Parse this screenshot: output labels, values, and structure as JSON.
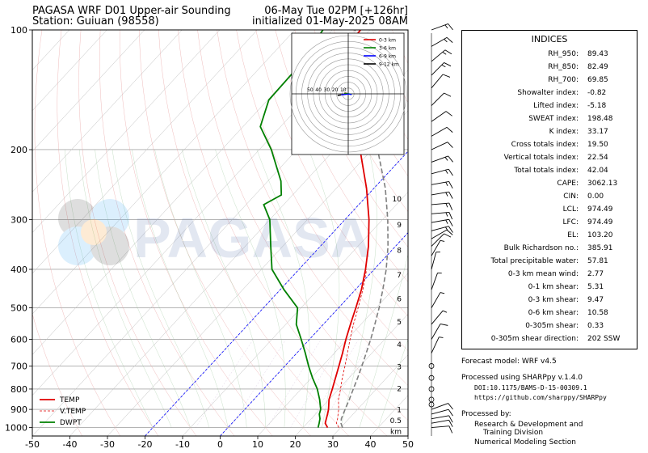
{
  "header": {
    "title_left_1": "PAGASA WRF D01 Upper-air Sounding",
    "title_left_2": "Station: Guiuan (98558)",
    "title_right_1": "06-May Tue 02PM [+126hr]",
    "title_right_2": "initialized 01-May-2025 08AM"
  },
  "watermark": "PAGASA",
  "colors": {
    "temp": "#e00000",
    "dwpt": "#008000",
    "vtemp": "#e00000",
    "parcel": "#808080",
    "hodo_03": "#e00000",
    "hodo_36": "#008000",
    "hodo_69": "#0000ff",
    "hodo_912": "#000000"
  },
  "chart_data": {
    "type": "line",
    "subtype": "skew-t log-p sounding",
    "x_ticks": [
      "-50",
      "-40",
      "-30",
      "-20",
      "-10",
      "0",
      "10",
      "20",
      "30",
      "40",
      "50"
    ],
    "y_ticks": [
      "100",
      "200",
      "300",
      "400",
      "500",
      "600",
      "700",
      "800",
      "900",
      "1000"
    ],
    "xlim": [
      -50,
      50
    ],
    "ylim": [
      1050,
      100
    ],
    "y_scale": "log",
    "km_labels": [
      "km",
      "0.5",
      "1",
      "2",
      "3",
      "4",
      "5",
      "6",
      "7",
      "8",
      "9",
      "10"
    ],
    "legend": [
      "TEMP",
      "V.TEMP",
      "DWPT"
    ],
    "legend_position": "lower-left",
    "series": [
      {
        "name": "TEMP",
        "points": [
          [
            1000,
            26.5
          ],
          [
            975,
            24.8
          ],
          [
            950,
            24.0
          ],
          [
            925,
            23.2
          ],
          [
            900,
            22.3
          ],
          [
            850,
            20.0
          ],
          [
            800,
            18.3
          ],
          [
            750,
            16.4
          ],
          [
            700,
            14.4
          ],
          [
            650,
            12.2
          ],
          [
            600,
            9.7
          ],
          [
            550,
            7.2
          ],
          [
            500,
            4.6
          ],
          [
            450,
            1.6
          ],
          [
            400,
            -2.3
          ],
          [
            350,
            -7.2
          ],
          [
            300,
            -13.6
          ],
          [
            250,
            -22.0
          ],
          [
            200,
            -33.2
          ],
          [
            175,
            -40.0
          ],
          [
            150,
            -48.5
          ],
          [
            125,
            -57.0
          ],
          [
            110,
            -62.0
          ],
          [
            100,
            -62.5
          ]
        ]
      },
      {
        "name": "V.TEMP",
        "points": [
          [
            1000,
            29.5
          ],
          [
            975,
            27.8
          ],
          [
            950,
            27.0
          ],
          [
            925,
            26.0
          ],
          [
            900,
            25.0
          ],
          [
            850,
            22.5
          ],
          [
            800,
            20.5
          ],
          [
            750,
            18.2
          ],
          [
            700,
            16.0
          ],
          [
            650,
            13.5
          ],
          [
            600,
            10.8
          ],
          [
            550,
            8.0
          ],
          [
            500,
            5.2
          ],
          [
            450,
            2.0
          ],
          [
            400,
            -2.0
          ]
        ]
      },
      {
        "name": "DWPT",
        "points": [
          [
            1000,
            24.0
          ],
          [
            975,
            23.2
          ],
          [
            950,
            22.3
          ],
          [
            925,
            21.0
          ],
          [
            900,
            20.2
          ],
          [
            850,
            17.5
          ],
          [
            800,
            14.3
          ],
          [
            750,
            10.3
          ],
          [
            700,
            6.3
          ],
          [
            650,
            2.3
          ],
          [
            600,
            -2.2
          ],
          [
            550,
            -7.2
          ],
          [
            500,
            -10.9
          ],
          [
            450,
            -19.0
          ],
          [
            400,
            -27.2
          ],
          [
            350,
            -33.2
          ],
          [
            300,
            -40.0
          ],
          [
            275,
            -45.3
          ],
          [
            260,
            -43.0
          ],
          [
            240,
            -46.5
          ],
          [
            200,
            -56.8
          ],
          [
            175,
            -65.4
          ],
          [
            150,
            -69.7
          ],
          [
            125,
            -70.0
          ],
          [
            110,
            -71.5
          ],
          [
            100,
            -72.5
          ]
        ]
      },
      {
        "name": "parcel",
        "points": [
          [
            1000,
            30.5
          ],
          [
            975,
            29.0
          ],
          [
            950,
            28.0
          ],
          [
            900,
            26.7
          ],
          [
            850,
            25.4
          ],
          [
            800,
            23.9
          ],
          [
            750,
            22.3
          ],
          [
            700,
            20.5
          ],
          [
            650,
            18.5
          ],
          [
            600,
            16.3
          ],
          [
            550,
            13.7
          ],
          [
            500,
            10.8
          ],
          [
            450,
            7.3
          ],
          [
            400,
            3.2
          ],
          [
            350,
            -2.0
          ],
          [
            300,
            -8.6
          ],
          [
            250,
            -17.0
          ],
          [
            200,
            -28.5
          ],
          [
            175,
            -36.0
          ],
          [
            150,
            -45.0
          ],
          [
            125,
            -54.0
          ],
          [
            110,
            -60.0
          ],
          [
            100,
            -64.0
          ]
        ]
      }
    ],
    "hodograph": {
      "ring_labels": [
        "50",
        "40",
        "30",
        "20",
        "10"
      ],
      "legend": [
        "0-3 km",
        "3-6 km",
        "6-9 km",
        "9-12 km"
      ],
      "segments": [
        {
          "name": "0-3 km",
          "color": "#e00000",
          "uv": [
            [
              0,
              0
            ],
            [
              -1.5,
              0.4
            ],
            [
              -3.2,
              0.9
            ],
            [
              -4.5,
              0.6
            ]
          ]
        },
        {
          "name": "3-6 km",
          "color": "#008000",
          "uv": [
            [
              -4.5,
              0.6
            ],
            [
              -2.0,
              0.5
            ],
            [
              0.5,
              0.2
            ],
            [
              3.8,
              -0.8
            ]
          ]
        },
        {
          "name": "6-9 km",
          "color": "#0000ff",
          "uv": [
            [
              3.8,
              -0.8
            ],
            [
              0.5,
              -0.2
            ],
            [
              -3.0,
              -0.6
            ],
            [
              -8.0,
              -1.2
            ]
          ]
        },
        {
          "name": "9-12 km",
          "color": "#000000",
          "uv": [
            [
              -8.0,
              -1.2
            ],
            [
              -12.0,
              -1.8
            ]
          ]
        }
      ]
    }
  },
  "wind_barbs": [
    {
      "p": 100,
      "dir": 70,
      "spd": 15
    },
    {
      "p": 110,
      "dir": 60,
      "spd": 15
    },
    {
      "p": 120,
      "dir": 50,
      "spd": 15
    },
    {
      "p": 130,
      "dir": 45,
      "spd": 15
    },
    {
      "p": 140,
      "dir": 40,
      "spd": 10
    },
    {
      "p": 155,
      "dir": 45,
      "spd": 10
    },
    {
      "p": 170,
      "dir": 55,
      "spd": 10
    },
    {
      "p": 185,
      "dir": 60,
      "spd": 10
    },
    {
      "p": 200,
      "dir": 65,
      "spd": 10
    },
    {
      "p": 215,
      "dir": 70,
      "spd": 15
    },
    {
      "p": 230,
      "dir": 75,
      "spd": 15
    },
    {
      "p": 245,
      "dir": 80,
      "spd": 15
    },
    {
      "p": 260,
      "dir": 80,
      "spd": 15
    },
    {
      "p": 275,
      "dir": 85,
      "spd": 15
    },
    {
      "p": 290,
      "dir": 85,
      "spd": 15
    },
    {
      "p": 305,
      "dir": 80,
      "spd": 15
    },
    {
      "p": 320,
      "dir": 75,
      "spd": 15
    },
    {
      "p": 335,
      "dir": 60,
      "spd": 10
    },
    {
      "p": 350,
      "dir": 45,
      "spd": 10
    },
    {
      "p": 370,
      "dir": 30,
      "spd": 5
    },
    {
      "p": 400,
      "dir": 15,
      "spd": 5
    },
    {
      "p": 450,
      "dir": 20,
      "spd": 5
    },
    {
      "p": 500,
      "dir": 30,
      "spd": 5
    },
    {
      "p": 550,
      "dir": 40,
      "spd": 5
    },
    {
      "p": 600,
      "dir": 30,
      "spd": 10
    },
    {
      "p": 650,
      "dir": 25,
      "spd": 5
    },
    {
      "p": 700,
      "dir": 0,
      "spd": 0
    },
    {
      "p": 750,
      "dir": 0,
      "spd": 0
    },
    {
      "p": 800,
      "dir": 0,
      "spd": 0
    },
    {
      "p": 850,
      "dir": 0,
      "spd": 0
    },
    {
      "p": 875,
      "dir": 0,
      "spd": 0
    },
    {
      "p": 900,
      "dir": 70,
      "spd": 10
    },
    {
      "p": 925,
      "dir": 75,
      "spd": 10
    },
    {
      "p": 950,
      "dir": 80,
      "spd": 10
    },
    {
      "p": 975,
      "dir": 80,
      "spd": 10
    },
    {
      "p": 1000,
      "dir": 85,
      "spd": 10
    }
  ],
  "indices": {
    "title": "INDICES",
    "rows": [
      {
        "label": "RH_950:",
        "value": "89.43"
      },
      {
        "label": "RH_850:",
        "value": "82.49"
      },
      {
        "label": "RH_700:",
        "value": "69.85"
      },
      {
        "label": "Showalter index:",
        "value": "-0.82"
      },
      {
        "label": "Lifted index:",
        "value": "-5.18"
      },
      {
        "label": "SWEAT index:",
        "value": "198.48"
      },
      {
        "label": "K index:",
        "value": "33.17"
      },
      {
        "label": "Cross totals index:",
        "value": "19.50"
      },
      {
        "label": "Vertical totals index:",
        "value": "22.54"
      },
      {
        "label": "Total totals index:",
        "value": "42.04"
      },
      {
        "label": "CAPE:",
        "value": "3062.13"
      },
      {
        "label": "CIN:",
        "value": "0.00"
      },
      {
        "label": "LCL:",
        "value": "974.49"
      },
      {
        "label": "LFC:",
        "value": "974.49"
      },
      {
        "label": "EL:",
        "value": "103.20"
      },
      {
        "label": "Bulk Richardson no.:",
        "value": "385.91"
      },
      {
        "label": "Total precipitable water:",
        "value": "57.81"
      },
      {
        "label": "0-3 km mean wind:",
        "value": "2.77"
      },
      {
        "label": "0-1 km shear:",
        "value": "5.31"
      },
      {
        "label": "0-3 km shear:",
        "value": "9.47"
      },
      {
        "label": "0-6 km shear:",
        "value": "10.58"
      },
      {
        "label": "0-305m shear:",
        "value": "0.33"
      },
      {
        "label": "0-305m shear direction:",
        "value": "202 SSW"
      }
    ]
  },
  "footer": {
    "model": "Forecast model: WRF v4.5",
    "processed": "Processed using SHARPpy v.1.4.0",
    "doi": "DOI:10.1175/BAMS-D-15-00309.1",
    "url": "https://github.com/sharppy/SHARPpy",
    "processed_by": "Processed by:",
    "org1": "Research & Development and",
    "org2": "Training Division",
    "org3": "Numerical Modeling Section"
  }
}
